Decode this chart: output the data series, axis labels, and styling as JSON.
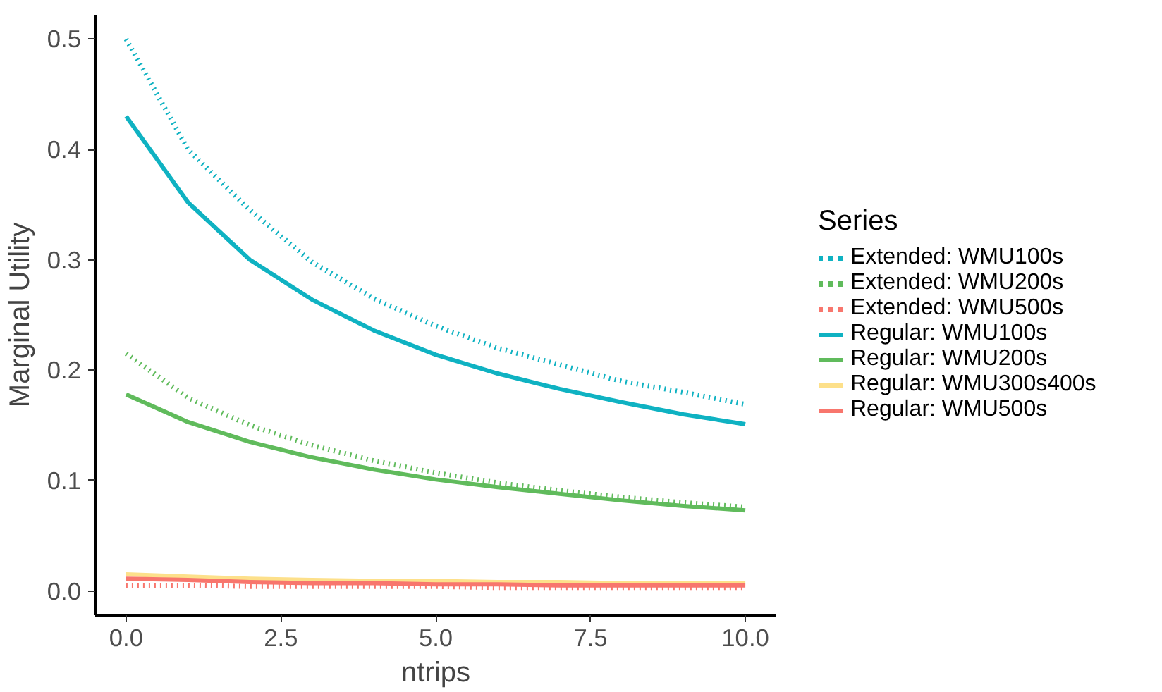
{
  "chart_data": {
    "type": "line",
    "xlabel": "ntrips",
    "ylabel": "Marginal Utility",
    "legend_title": "Series",
    "legend": "right",
    "grid": false,
    "x": [
      0,
      1,
      2,
      3,
      4,
      5,
      6,
      7,
      8,
      9,
      10
    ],
    "xlim": [
      -0.5,
      10.5
    ],
    "xticks": [
      {
        "value": 0,
        "label": "0.0"
      },
      2.5,
      {
        "value": 5,
        "label": "5.0"
      },
      7.5,
      {
        "value": 10,
        "label": "10.0"
      }
    ],
    "ylim": [
      -0.022,
      0.522
    ],
    "yticks": [
      {
        "value": 0,
        "label": "0.0"
      },
      0.1,
      0.2,
      0.3,
      0.4,
      0.5
    ],
    "series": [
      {
        "name": "Extended: WMU100s",
        "color": "#0fb2c2",
        "line_style": "dotted",
        "values": [
          0.5,
          0.4,
          0.345,
          0.298,
          0.265,
          0.24,
          0.22,
          0.205,
          0.19,
          0.18,
          0.169
        ]
      },
      {
        "name": "Extended: WMU200s",
        "color": "#60bb5c",
        "line_style": "dotted",
        "values": [
          0.215,
          0.175,
          0.15,
          0.132,
          0.118,
          0.107,
          0.098,
          0.091,
          0.085,
          0.08,
          0.076
        ]
      },
      {
        "name": "Extended: WMU500s",
        "color": "#f8766d",
        "line_style": "dotted",
        "values": [
          0.005,
          0.005,
          0.004,
          0.004,
          0.004,
          0.004,
          0.003,
          0.003,
          0.003,
          0.003,
          0.003
        ]
      },
      {
        "name": "Regular: WMU100s",
        "color": "#0fb2c2",
        "line_style": "solid",
        "values": [
          0.43,
          0.352,
          0.3,
          0.264,
          0.236,
          0.214,
          0.197,
          0.183,
          0.171,
          0.16,
          0.151
        ]
      },
      {
        "name": "Regular: WMU200s",
        "color": "#60bb5c",
        "line_style": "solid",
        "values": [
          0.178,
          0.153,
          0.135,
          0.121,
          0.11,
          0.101,
          0.094,
          0.088,
          0.082,
          0.077,
          0.073
        ]
      },
      {
        "name": "Regular: WMU300s400s",
        "color": "#fde08a",
        "line_style": "solid",
        "values": [
          0.015,
          0.013,
          0.011,
          0.01,
          0.009,
          0.009,
          0.008,
          0.008,
          0.007,
          0.007,
          0.007
        ]
      },
      {
        "name": "Regular: WMU500s",
        "color": "#f8766d",
        "line_style": "solid",
        "values": [
          0.011,
          0.01,
          0.008,
          0.007,
          0.007,
          0.006,
          0.006,
          0.005,
          0.005,
          0.005,
          0.005
        ]
      }
    ]
  }
}
